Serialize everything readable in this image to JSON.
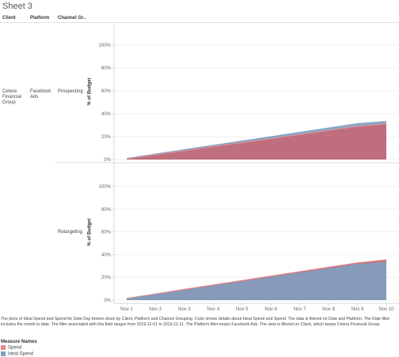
{
  "sheet_title": "Sheet 3",
  "headers": {
    "client": "Client",
    "platform": "Platform",
    "channel": "Channel Gr.."
  },
  "rows": {
    "client": "Cetera Financial Group",
    "platform": "Facebook Ads",
    "channel_top": "Prospecting",
    "channel_bottom": "Retargeting"
  },
  "caption": "The plots of Ideal Spend and Spend for Date Day broken down by Client, Platform and Channel Grouping. Color shows details about Ideal Spend and Spend. The data is filtered on Date and Platform. The Date filter includes the month to date. The filter associated with this field ranges from 2019-11-01 to 2019-11-11. The Platform filter keeps Facebook Ads. The view is filtered on Client, which keeps Cetera Financial Group.",
  "legend": {
    "title": "Measure Names",
    "items": [
      {
        "label": "Spend",
        "color": "#e8868c"
      },
      {
        "label": "Ideal Spend",
        "color": "#7f9fbf"
      }
    ]
  },
  "chart_data": [
    {
      "type": "area",
      "panel": "Prospecting",
      "ylabel": "% of Budget",
      "ylim": [
        0,
        100
      ],
      "y_ticks": [
        "0%",
        "20%",
        "40%",
        "60%",
        "80%",
        "100%"
      ],
      "x": [
        "Nov 1",
        "Nov 2",
        "Nov 3",
        "Nov 4",
        "Nov 5",
        "Nov 6",
        "Nov 7",
        "Nov 8",
        "Nov 9",
        "Nov 10"
      ],
      "series": [
        {
          "name": "Ideal Spend",
          "color": "#7f9fbf",
          "values": [
            1,
            4.8,
            8.6,
            12.4,
            16.2,
            20,
            23.8,
            27.6,
            31.4,
            33.3
          ]
        },
        {
          "name": "Spend",
          "color": "#e8868c",
          "values": [
            0.5,
            4.1,
            7.6,
            11.2,
            14.7,
            18.2,
            21.8,
            25.3,
            28.9,
            31
          ]
        }
      ]
    },
    {
      "type": "area",
      "panel": "Retargeting",
      "ylabel": "% of Budget",
      "ylim": [
        0,
        100
      ],
      "y_ticks": [
        "0%",
        "20%",
        "40%",
        "60%",
        "80%",
        "100%"
      ],
      "x": [
        "Nov 1",
        "Nov 2",
        "Nov 3",
        "Nov 4",
        "Nov 5",
        "Nov 6",
        "Nov 7",
        "Nov 8",
        "Nov 9",
        "Nov 10"
      ],
      "series": [
        {
          "name": "Ideal Spend",
          "color": "#7f9fbf",
          "values": [
            1,
            4.8,
            8.6,
            12.4,
            16.2,
            20,
            23.8,
            27.6,
            31.4,
            33.3
          ]
        },
        {
          "name": "Spend",
          "color": "#e8868c",
          "values": [
            1.5,
            5.5,
            9.5,
            13.4,
            17.3,
            21.2,
            25.1,
            29,
            32.8,
            35.5
          ]
        }
      ]
    }
  ]
}
